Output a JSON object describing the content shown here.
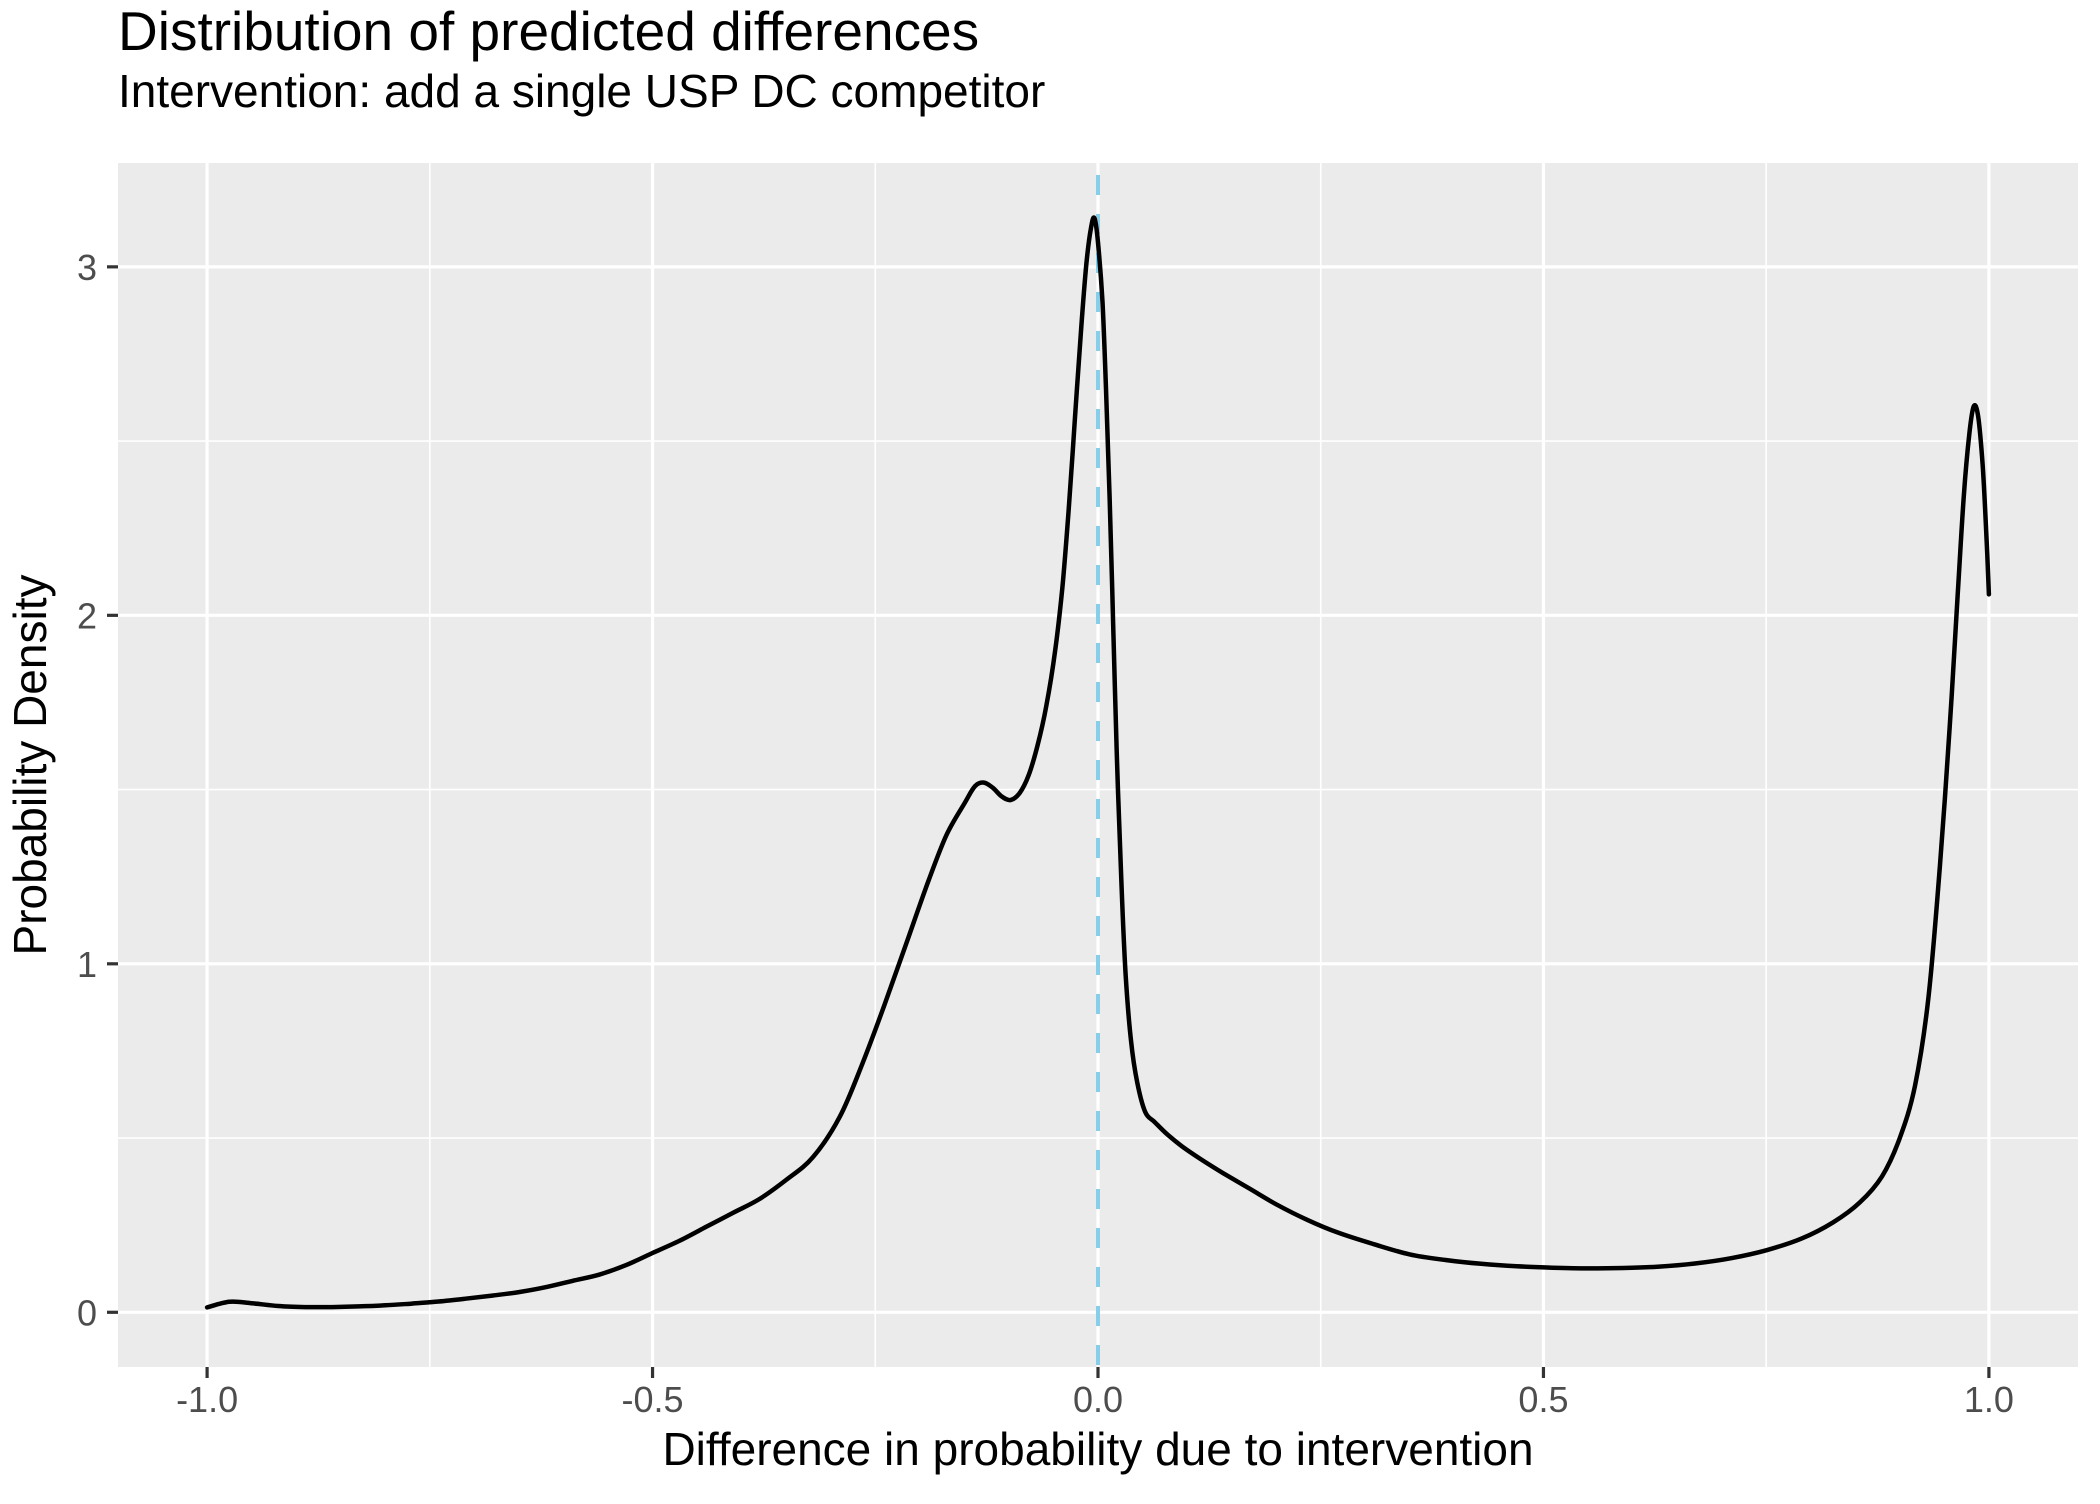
{
  "colors": {
    "page_background": "#FFFFFF",
    "panel_background": "#EBEBEB",
    "gridline": "#FFFFFF",
    "density_line": "#000000",
    "reference_line": "#87CEEB",
    "tick_label": "#4D4D4D",
    "tick_mark": "#333333",
    "title_text": "#000000"
  },
  "chart_data": {
    "type": "line",
    "title": "Distribution of predicted differences",
    "subtitle": "Intervention: add a single USP DC competitor",
    "xlabel": "Difference in probability due to intervention",
    "ylabel": "Probability Density",
    "xlim": [
      -1.1,
      1.1
    ],
    "ylim": [
      -0.157,
      3.298
    ],
    "grid": true,
    "legend_position": "none",
    "x_ticks": [
      {
        "value": -1.0,
        "label": "-1.0"
      },
      {
        "value": -0.5,
        "label": "-0.5"
      },
      {
        "value": 0.0,
        "label": "0.0"
      },
      {
        "value": 0.5,
        "label": "0.5"
      },
      {
        "value": 1.0,
        "label": "1.0"
      }
    ],
    "y_ticks": [
      {
        "value": 0,
        "label": "0"
      },
      {
        "value": 1,
        "label": "1"
      },
      {
        "value": 2,
        "label": "2"
      },
      {
        "value": 3,
        "label": "3"
      }
    ],
    "x_minor_gridlines": [
      -0.75,
      -0.25,
      0.25,
      0.75
    ],
    "y_minor_gridlines": [
      0.5,
      1.5,
      2.5
    ],
    "reference_line": {
      "x": 0,
      "style": "dashed",
      "color": "#87CEEB"
    },
    "series": [
      {
        "name": "predicted-difference-density",
        "color": "#000000",
        "points": [
          [
            -1.0,
            0.014
          ],
          [
            -0.975,
            0.03
          ],
          [
            -0.95,
            0.026
          ],
          [
            -0.92,
            0.018
          ],
          [
            -0.89,
            0.015
          ],
          [
            -0.86,
            0.015
          ],
          [
            -0.83,
            0.017
          ],
          [
            -0.8,
            0.02
          ],
          [
            -0.77,
            0.025
          ],
          [
            -0.74,
            0.031
          ],
          [
            -0.71,
            0.039
          ],
          [
            -0.68,
            0.048
          ],
          [
            -0.65,
            0.058
          ],
          [
            -0.62,
            0.072
          ],
          [
            -0.59,
            0.09
          ],
          [
            -0.56,
            0.108
          ],
          [
            -0.53,
            0.135
          ],
          [
            -0.5,
            0.17
          ],
          [
            -0.47,
            0.205
          ],
          [
            -0.44,
            0.245
          ],
          [
            -0.41,
            0.285
          ],
          [
            -0.38,
            0.325
          ],
          [
            -0.35,
            0.38
          ],
          [
            -0.32,
            0.445
          ],
          [
            -0.29,
            0.56
          ],
          [
            -0.265,
            0.71
          ],
          [
            -0.24,
            0.88
          ],
          [
            -0.215,
            1.06
          ],
          [
            -0.19,
            1.24
          ],
          [
            -0.17,
            1.37
          ],
          [
            -0.15,
            1.46
          ],
          [
            -0.138,
            1.51
          ],
          [
            -0.128,
            1.52
          ],
          [
            -0.118,
            1.505
          ],
          [
            -0.108,
            1.48
          ],
          [
            -0.098,
            1.47
          ],
          [
            -0.088,
            1.49
          ],
          [
            -0.078,
            1.54
          ],
          [
            -0.068,
            1.625
          ],
          [
            -0.058,
            1.74
          ],
          [
            -0.048,
            1.9
          ],
          [
            -0.04,
            2.08
          ],
          [
            -0.033,
            2.3
          ],
          [
            -0.026,
            2.56
          ],
          [
            -0.019,
            2.82
          ],
          [
            -0.013,
            3.01
          ],
          [
            -0.008,
            3.11
          ],
          [
            -0.004,
            3.14
          ],
          [
            0.0,
            3.07
          ],
          [
            0.005,
            2.9
          ],
          [
            0.009,
            2.65
          ],
          [
            0.013,
            2.34
          ],
          [
            0.017,
            1.98
          ],
          [
            0.021,
            1.61
          ],
          [
            0.026,
            1.25
          ],
          [
            0.031,
            0.97
          ],
          [
            0.037,
            0.78
          ],
          [
            0.044,
            0.66
          ],
          [
            0.053,
            0.575
          ],
          [
            0.064,
            0.545
          ],
          [
            0.078,
            0.51
          ],
          [
            0.095,
            0.475
          ],
          [
            0.115,
            0.44
          ],
          [
            0.14,
            0.4
          ],
          [
            0.17,
            0.355
          ],
          [
            0.2,
            0.31
          ],
          [
            0.235,
            0.265
          ],
          [
            0.27,
            0.228
          ],
          [
            0.31,
            0.195
          ],
          [
            0.35,
            0.166
          ],
          [
            0.39,
            0.15
          ],
          [
            0.43,
            0.139
          ],
          [
            0.47,
            0.132
          ],
          [
            0.51,
            0.128
          ],
          [
            0.55,
            0.126
          ],
          [
            0.59,
            0.127
          ],
          [
            0.63,
            0.131
          ],
          [
            0.67,
            0.14
          ],
          [
            0.71,
            0.155
          ],
          [
            0.75,
            0.178
          ],
          [
            0.79,
            0.212
          ],
          [
            0.825,
            0.258
          ],
          [
            0.855,
            0.315
          ],
          [
            0.88,
            0.39
          ],
          [
            0.9,
            0.5
          ],
          [
            0.917,
            0.65
          ],
          [
            0.932,
            0.9
          ],
          [
            0.945,
            1.28
          ],
          [
            0.956,
            1.68
          ],
          [
            0.965,
            2.06
          ],
          [
            0.972,
            2.35
          ],
          [
            0.978,
            2.52
          ],
          [
            0.983,
            2.6
          ],
          [
            0.988,
            2.57
          ],
          [
            0.993,
            2.43
          ],
          [
            0.997,
            2.24
          ],
          [
            1.0,
            2.06
          ]
        ]
      }
    ]
  }
}
